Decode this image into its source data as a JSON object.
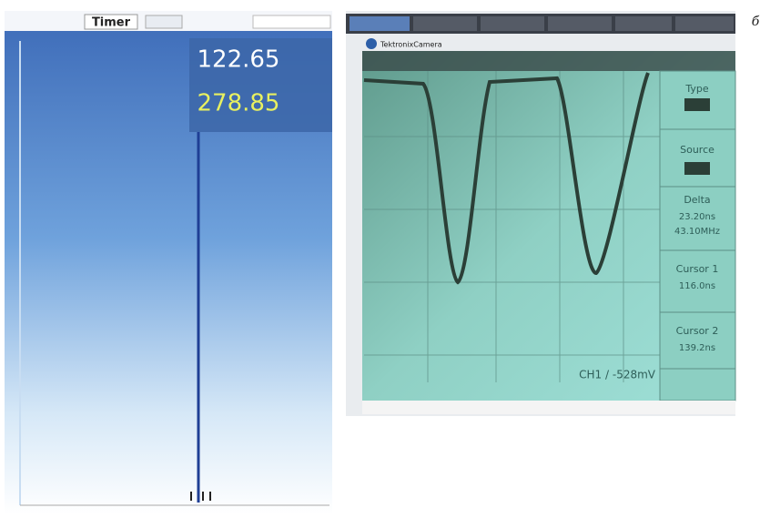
{
  "figure_label": "б",
  "timer_panel": {
    "title": "Timer",
    "readings": [
      "122.65",
      "278.85"
    ]
  },
  "scope_panel": {
    "window_title": "TektronixCamera",
    "side_labels": [
      "Type",
      "Source",
      "Delta",
      "23.20ns",
      "43.10MHz",
      "Cursor 1",
      "116.0ns",
      "Cursor 2",
      "139.2ns"
    ],
    "status": "CH1 / -528mV"
  }
}
